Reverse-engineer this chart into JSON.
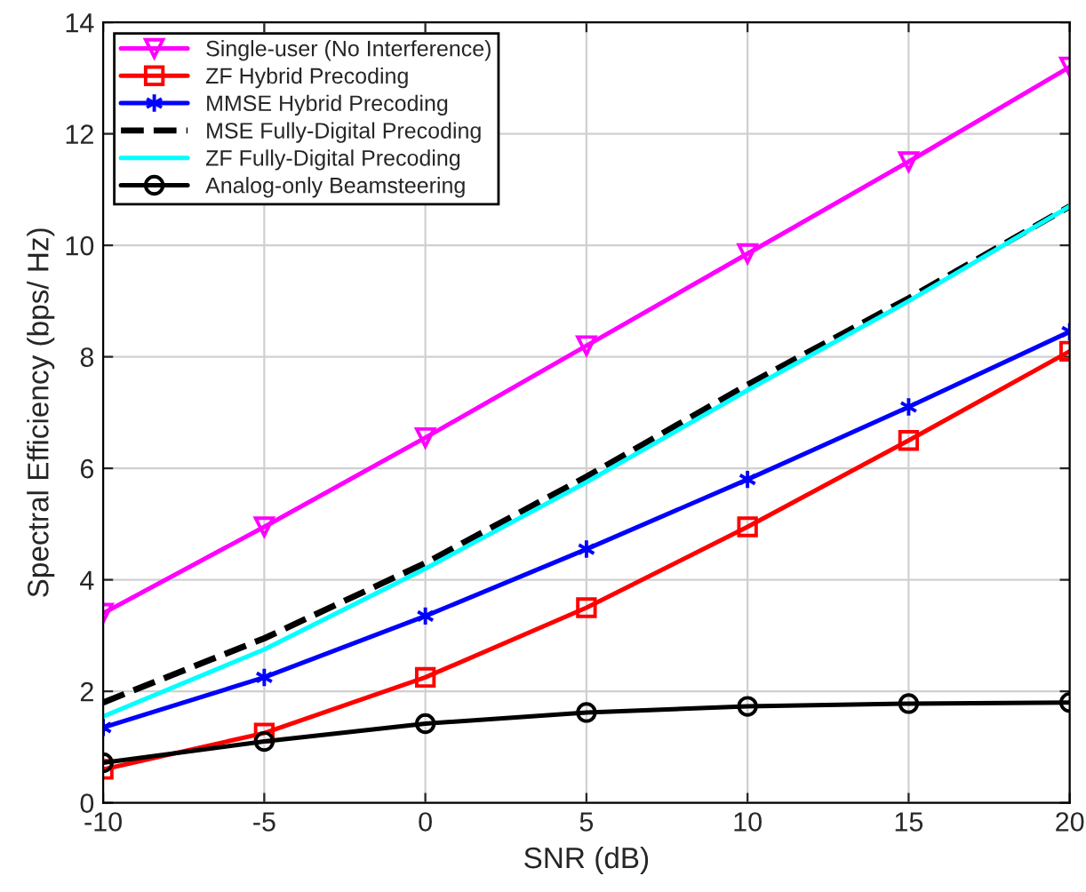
{
  "chart_data": {
    "type": "line",
    "xlabel": "SNR (dB)",
    "ylabel": "Spectral Efficiency (bps/ Hz)",
    "x": [
      -10,
      -5,
      0,
      5,
      10,
      15,
      20
    ],
    "series": [
      {
        "name": "Single-user (No Interference)",
        "color": "#ff00ff",
        "marker": "triangle",
        "line_style": "solid",
        "values": [
          3.4,
          4.95,
          6.55,
          8.2,
          9.85,
          11.5,
          13.2
        ]
      },
      {
        "name": "ZF Hybrid Precoding",
        "color": "#ff0000",
        "marker": "square",
        "line_style": "solid",
        "values": [
          0.6,
          1.25,
          2.25,
          3.5,
          4.95,
          6.5,
          8.1
        ]
      },
      {
        "name": "MMSE Hybrid Precoding",
        "color": "#0000ff",
        "marker": "cross",
        "line_style": "solid",
        "values": [
          1.35,
          2.25,
          3.35,
          4.55,
          5.8,
          7.1,
          8.45
        ]
      },
      {
        "name": "MSE Fully-Digital Precoding",
        "color": "#000000",
        "marker": "none",
        "line_style": "dashed",
        "values": [
          1.8,
          2.95,
          4.3,
          5.85,
          7.5,
          9.05,
          10.7
        ]
      },
      {
        "name": "ZF Fully-Digital Precoding",
        "color": "#00ffff",
        "marker": "none",
        "line_style": "solid",
        "values": [
          1.55,
          2.75,
          4.2,
          5.75,
          7.4,
          9.0,
          10.7
        ]
      },
      {
        "name": "Analog-only Beamsteering",
        "color": "#000000",
        "marker": "circle",
        "line_style": "solid",
        "values": [
          0.72,
          1.1,
          1.42,
          1.62,
          1.73,
          1.78,
          1.8
        ]
      }
    ],
    "xlim": [
      -10,
      20
    ],
    "xticks": [
      -10,
      -5,
      0,
      5,
      10,
      15,
      20
    ],
    "ylim": [
      0,
      14
    ],
    "yticks": [
      0,
      2,
      4,
      6,
      8,
      10,
      12,
      14
    ],
    "grid": true,
    "legend": "top left"
  }
}
